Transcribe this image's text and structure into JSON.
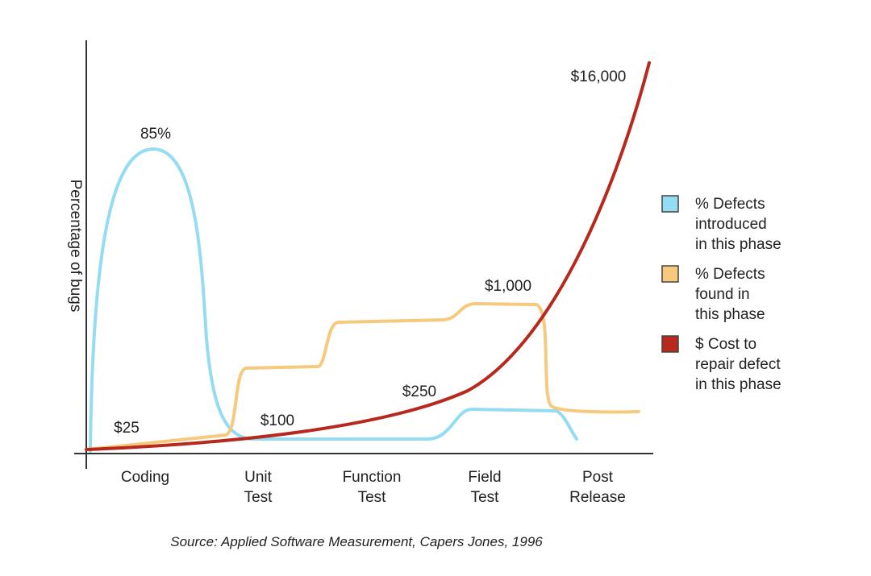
{
  "y_axis_label": "Percentage of bugs",
  "phases": [
    [
      "Coding"
    ],
    [
      "Unit",
      "Test"
    ],
    [
      "Function",
      "Test"
    ],
    [
      "Field",
      "Test"
    ],
    [
      "Post",
      "Release"
    ]
  ],
  "annotations": [
    "85%",
    "$25",
    "$100",
    "$250",
    "$1,000",
    "$16,000"
  ],
  "legend": [
    {
      "color": "#94dcf4",
      "lines": [
        "% Defects",
        "introduced",
        "in this phase"
      ]
    },
    {
      "color": "#f7c97c",
      "lines": [
        "% Defects",
        "found in",
        "this phase"
      ]
    },
    {
      "color": "#b7281d",
      "lines": [
        "$ Cost to",
        "repair defect",
        "in this phase"
      ]
    }
  ],
  "source": "Source: Applied Software Measurement, Capers Jones, 1996"
}
